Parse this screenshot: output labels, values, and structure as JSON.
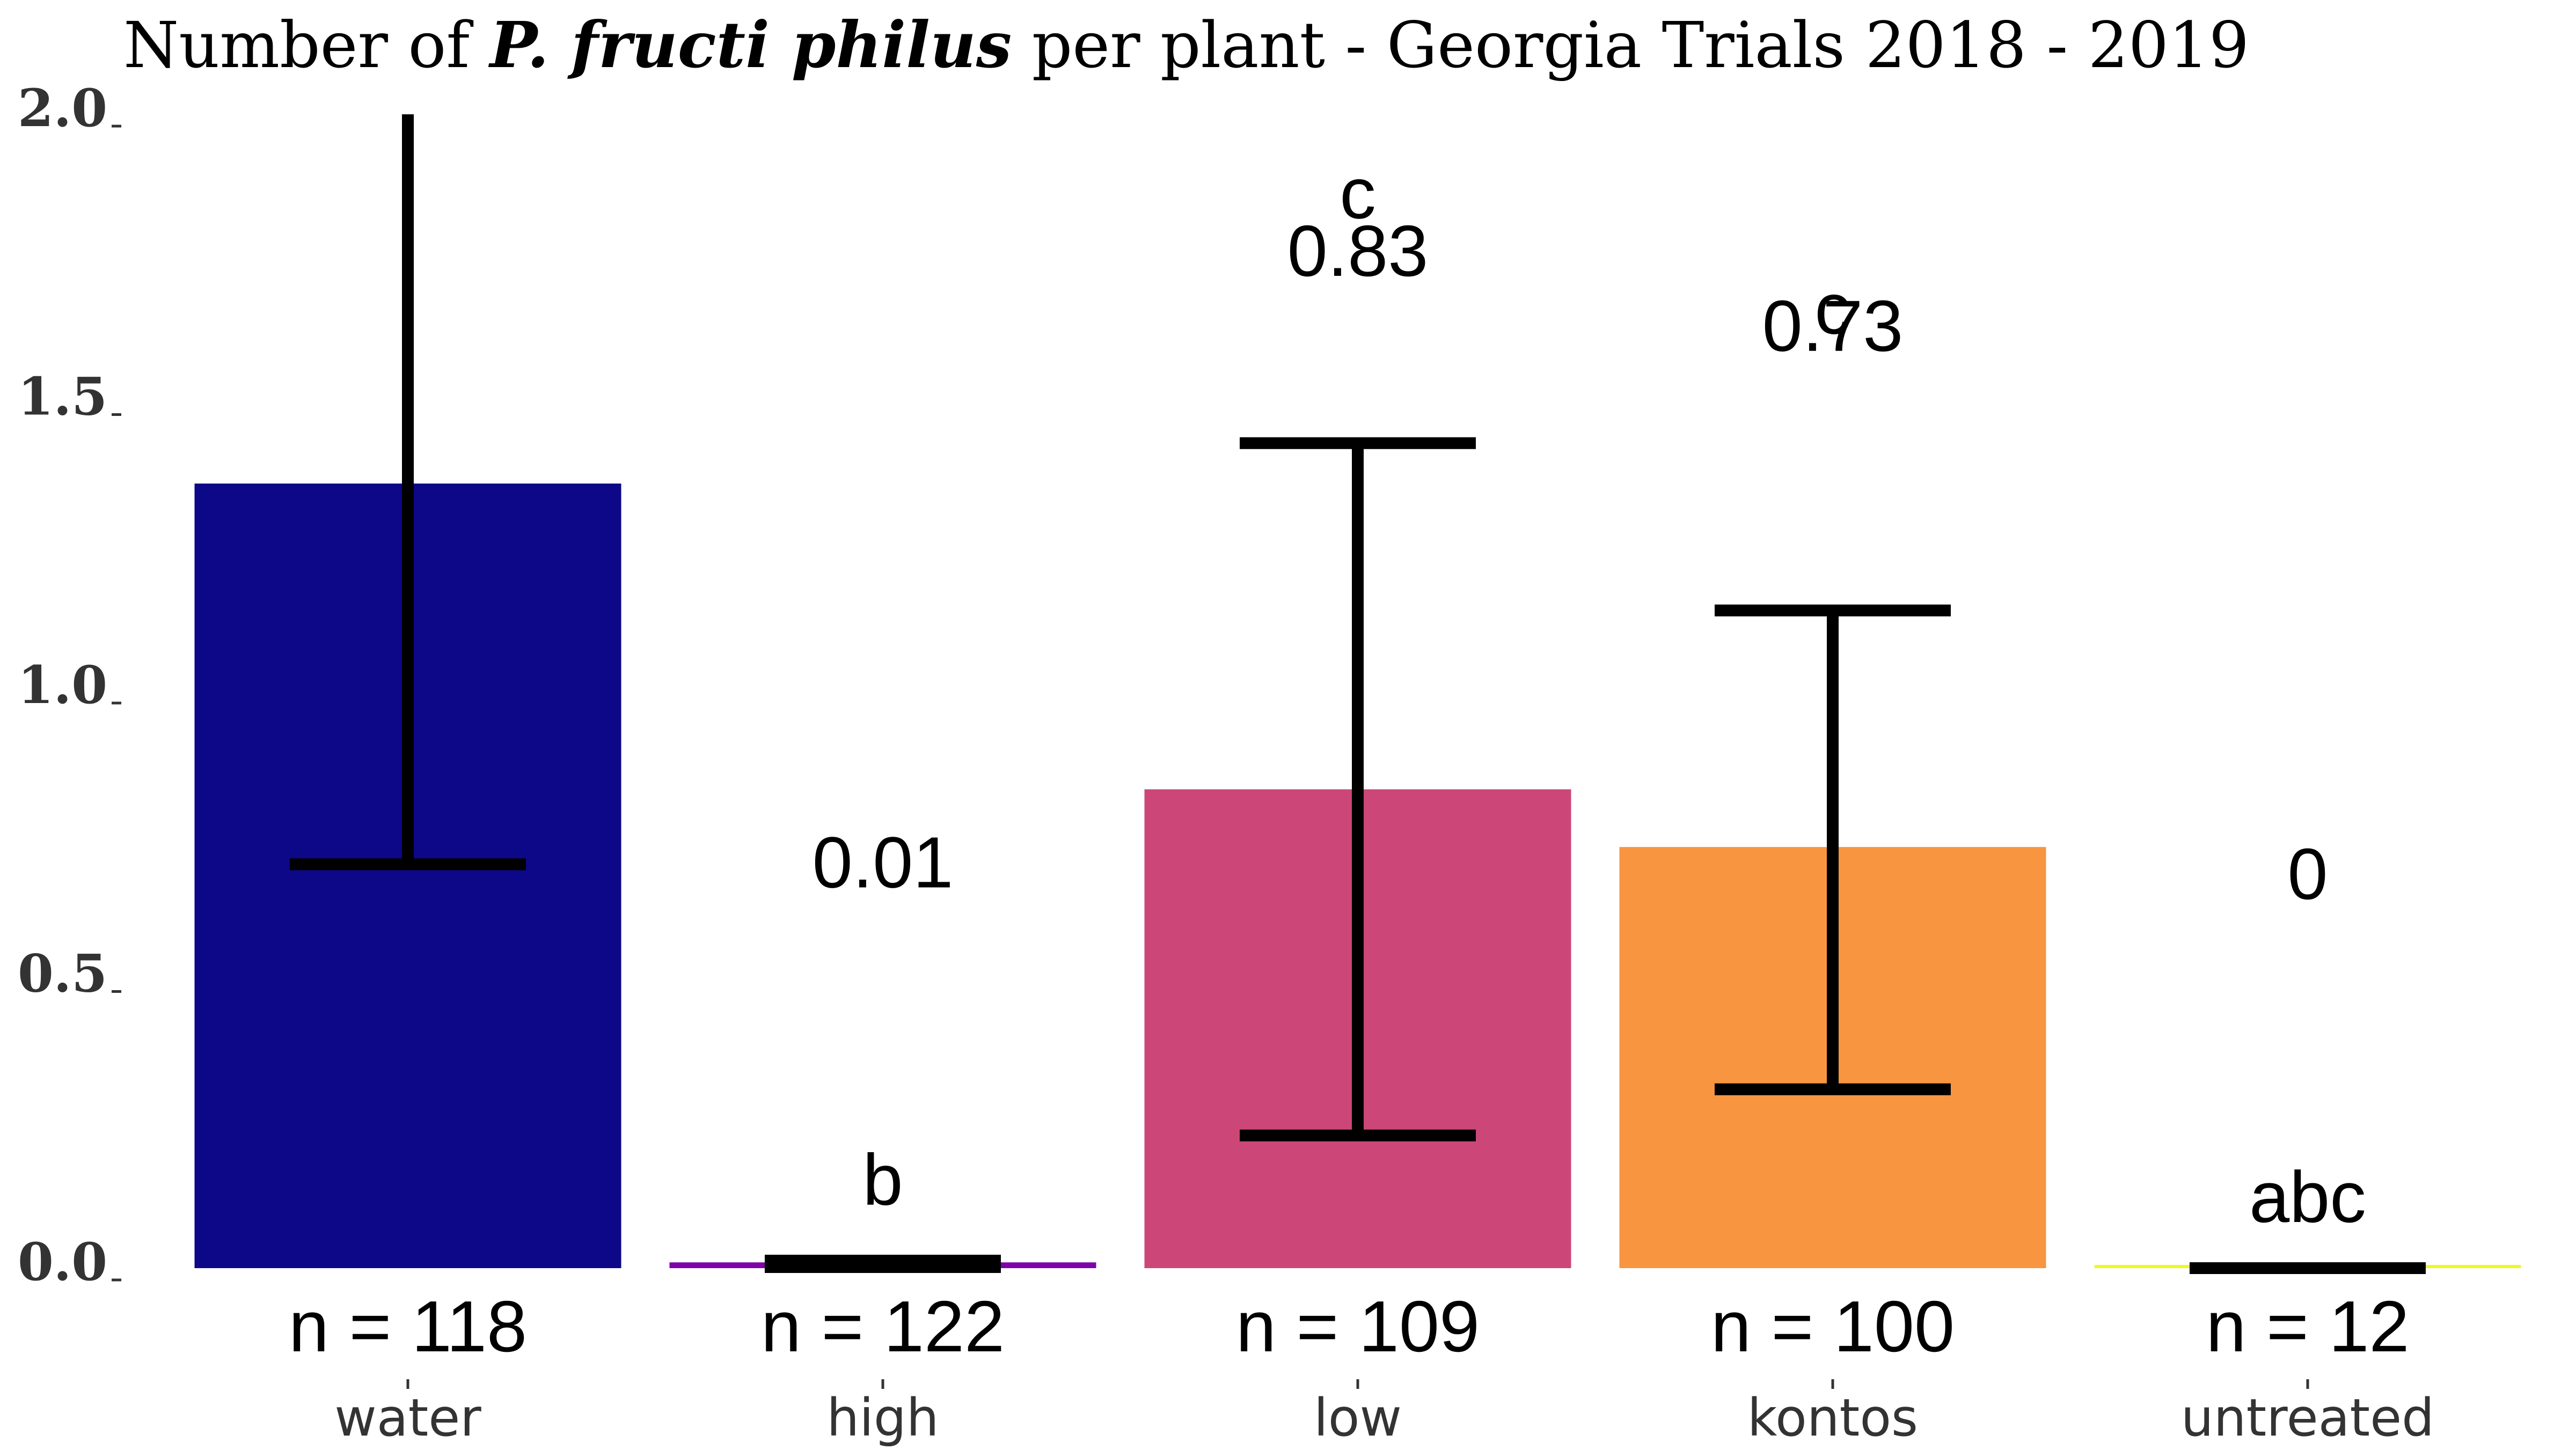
{
  "chart_data": {
    "type": "bar",
    "title": {
      "prefix": "Number of ",
      "species": "P. fructi philus",
      "suffix": " per plant - Georgia Trials 2018 - 2019"
    },
    "xlabel": "",
    "ylabel": "",
    "ylim": [
      0,
      2.0
    ],
    "yticks": [
      {
        "value": 0.0,
        "label": "0.0"
      },
      {
        "value": 0.5,
        "label": "0.5"
      },
      {
        "value": 1.0,
        "label": "1.0"
      },
      {
        "value": 1.5,
        "label": "1.5"
      },
      {
        "value": 2.0,
        "label": "2.0"
      }
    ],
    "grid": false,
    "legend": "none",
    "categories": [
      "water",
      "high",
      "low",
      "kontos",
      "untreated"
    ],
    "values": [
      1.36,
      0.01,
      0.83,
      0.73,
      0
    ],
    "error_low": [
      0.7,
      0.0,
      0.23,
      0.31,
      0
    ],
    "error_high": [
      2.0,
      0.02,
      1.43,
      1.14,
      0
    ],
    "colors": [
      "#0d0887",
      "#7e03a8",
      "#cc4778",
      "#f89540",
      "#f0f921"
    ],
    "value_labels": [
      {
        "text": "",
        "y": 0
      },
      {
        "text": "0.01",
        "y": 0.66
      },
      {
        "text": "0.83",
        "y": 1.72
      },
      {
        "text": "0.73",
        "y": 1.59
      },
      {
        "text": "0",
        "y": 0.64
      }
    ],
    "sig_letters": [
      {
        "text": "",
        "y": 0
      },
      {
        "text": "b",
        "y": 0.11
      },
      {
        "text": "c",
        "y": 1.82
      },
      {
        "text": "c",
        "y": 1.62
      },
      {
        "text": "abc",
        "y": 0.08
      }
    ],
    "n_labels": [
      "n = 118",
      "n = 122",
      "n = 109",
      "n = 100",
      "n = 12"
    ]
  }
}
